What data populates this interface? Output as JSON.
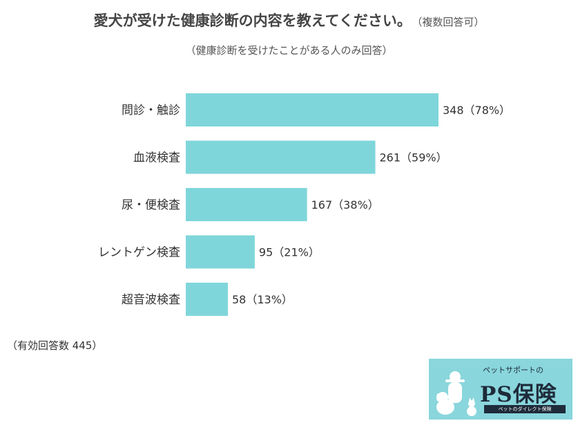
{
  "title": "愛犬が受けた健康診断の内容を教えてください。",
  "title_note": "（複数回答可）",
  "subtitle": "（健康診断を受けたことがある人のみ回答）",
  "footnote": "（有効回答数 445）",
  "logo": {
    "tagline": "ペットサポートの",
    "brand": "PS保険",
    "sub": "ペットのダイレクト保険"
  },
  "colors": {
    "bar": "#7fd6da",
    "logo_bg": "#89d6dc",
    "logo_text": "#1e2b3a"
  },
  "chart_data": {
    "type": "bar",
    "orientation": "horizontal",
    "categories": [
      "問診・触診",
      "血液検査",
      "尿・便検査",
      "レントゲン検査",
      "超音波検査"
    ],
    "values": [
      348,
      261,
      167,
      95,
      58
    ],
    "percentages": [
      "78%",
      "59%",
      "38%",
      "21%",
      "13%"
    ],
    "value_labels": [
      "348（78%）",
      "261（59%）",
      "167（38%）",
      "95（21%）",
      "58（13%）"
    ],
    "xlim": [
      0,
      348
    ],
    "grid": false,
    "legend": "none"
  }
}
